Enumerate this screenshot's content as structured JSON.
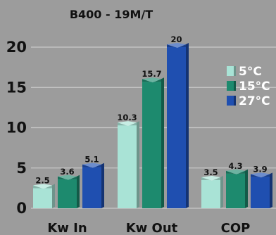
{
  "chart_data": {
    "type": "bar",
    "title": "B400 - 19M/T",
    "categories": [
      "Kw In",
      "Kw Out",
      "COP"
    ],
    "series": [
      {
        "name": "5°C",
        "values": [
          2.5,
          10.3,
          3.5
        ],
        "color": "#a9e3d6"
      },
      {
        "name": "15°C",
        "values": [
          3.6,
          15.7,
          4.3
        ],
        "color": "#1d8a6e"
      },
      {
        "name": "27°C",
        "values": [
          5.1,
          20,
          3.9
        ],
        "color": "#1f4fb0"
      }
    ],
    "value_labels": [
      [
        "2.5",
        "10.3",
        "3.5"
      ],
      [
        "3.6",
        "15.7",
        "4.3"
      ],
      [
        "5.1",
        "20",
        "3.9"
      ]
    ],
    "yticks": [
      "0",
      "5",
      "10",
      "15",
      "20"
    ],
    "ylim": [
      0,
      22
    ],
    "grid": true,
    "legend_position": "right",
    "background_color": "#9c9c9c",
    "grid_color": "#c8c8c8"
  }
}
